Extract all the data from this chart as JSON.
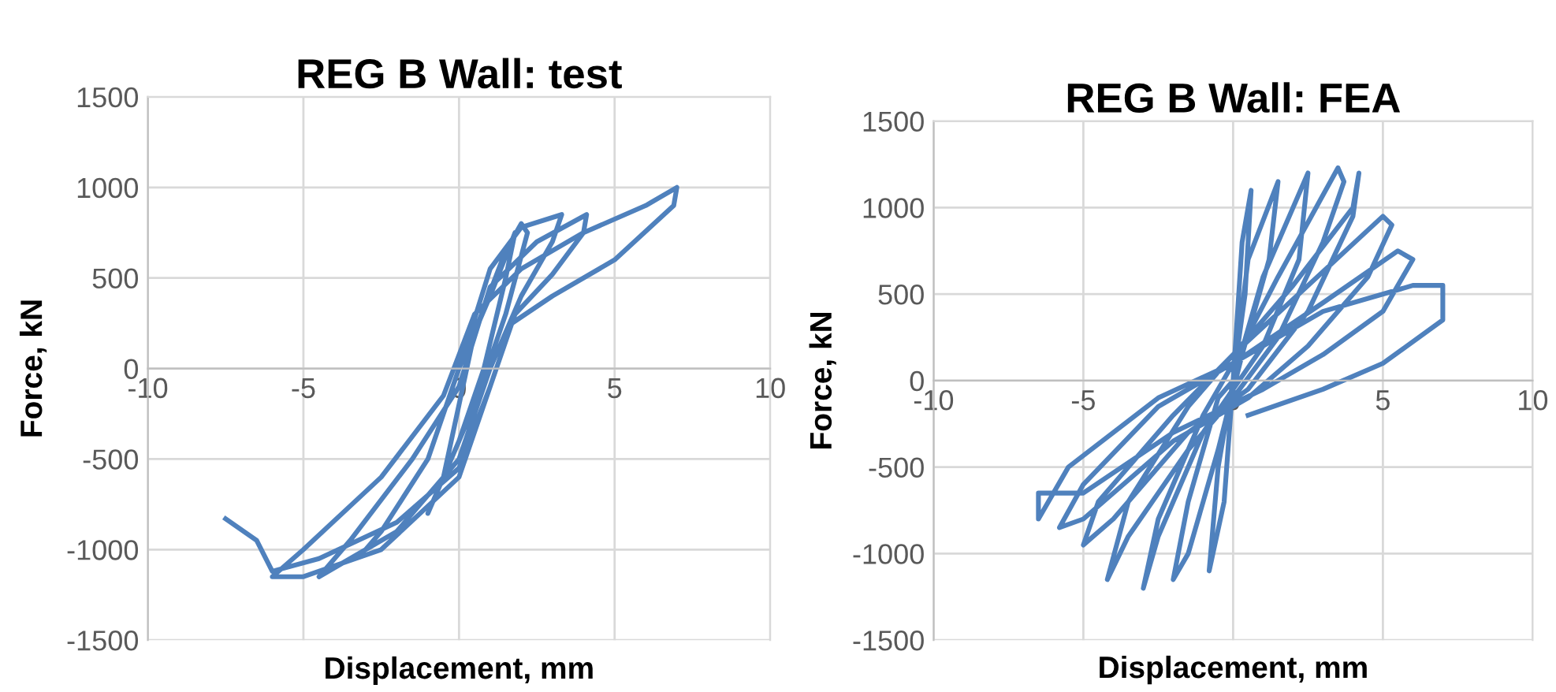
{
  "chart_data": [
    {
      "type": "line",
      "title": "REG B Wall: test",
      "xlabel": "Displacement, mm",
      "ylabel": "Force, kN",
      "xlim": [
        -10,
        10
      ],
      "ylim": [
        -1500,
        1500
      ],
      "xticks": [
        -10,
        -5,
        0,
        5,
        10
      ],
      "yticks": [
        -1500,
        -1000,
        -500,
        0,
        500,
        1000,
        1500
      ],
      "grid": true,
      "marker": "none",
      "line_style": "solid",
      "series": [
        {
          "color": "#4f81bd",
          "x": [
            0,
            1,
            1.8,
            1.5,
            0.8,
            0,
            -1,
            -0.5,
            0,
            0.5,
            1.5,
            2,
            2.2,
            1.5,
            0.5,
            -0.5,
            -2,
            -3,
            -2.5,
            -1,
            0,
            1,
            2,
            3.3,
            3,
            2,
            1,
            0,
            -2,
            -4,
            -4.5,
            -3.5,
            -1.5,
            0,
            1,
            2.5,
            4.1,
            4,
            3,
            1.8,
            1,
            0,
            -2.5,
            -5,
            -6,
            -5,
            -2.5,
            -0.5,
            0.5,
            2,
            4,
            6,
            7,
            6.9,
            5,
            3,
            1.7,
            1,
            0,
            -2,
            -4.5,
            -6,
            -6.5,
            -7.5
          ],
          "values": [
            0,
            400,
            750,
            500,
            0,
            -400,
            -800,
            -600,
            -200,
            200,
            650,
            800,
            750,
            300,
            -200,
            -600,
            -900,
            -1000,
            -900,
            -500,
            0,
            550,
            780,
            850,
            700,
            400,
            0,
            -500,
            -900,
            -1100,
            -1150,
            -950,
            -500,
            -100,
            450,
            700,
            850,
            750,
            520,
            300,
            -100,
            -600,
            -1000,
            -1150,
            -1150,
            -1000,
            -600,
            -150,
            300,
            550,
            750,
            900,
            1000,
            900,
            600,
            400,
            250,
            -100,
            -550,
            -850,
            -1050,
            -1120,
            -950,
            -830
          ]
        }
      ]
    },
    {
      "type": "line",
      "title": "REG B Wall: FEA",
      "xlabel": "Displacement, mm",
      "ylabel": "Force, kN",
      "xlim": [
        -10,
        10
      ],
      "ylim": [
        -1500,
        1500
      ],
      "xticks": [
        -10,
        -5,
        0,
        5,
        10
      ],
      "yticks": [
        -1500,
        -1000,
        -500,
        0,
        500,
        1000,
        1500
      ],
      "grid": true,
      "marker": "none",
      "line_style": "solid",
      "series": [
        {
          "color": "#4f81bd",
          "x": [
            0,
            0.3,
            0.6,
            0.4,
            0,
            -0.3,
            -0.8,
            -0.5,
            0,
            0.5,
            1.5,
            1.2,
            0.3,
            -0.5,
            -1.5,
            -2,
            -1.5,
            -0.5,
            0,
            1,
            2.5,
            2.2,
            1,
            0,
            -1,
            -2.5,
            -3,
            -2.5,
            -1,
            0,
            1.5,
            3.5,
            3.7,
            3,
            1.5,
            0,
            -1.5,
            -3.5,
            -4.2,
            -3.5,
            -1.5,
            0,
            2,
            4,
            4.2,
            4,
            2.5,
            0.5,
            -1.5,
            -4,
            -5,
            -4.5,
            -2,
            0,
            2.5,
            5,
            5.3,
            4.5,
            2.5,
            0.5,
            -2,
            -5,
            -5.8,
            -5,
            -2.5,
            0,
            3,
            5.5,
            6,
            5,
            3,
            1,
            -2,
            -5,
            -6.5,
            -6.5,
            -5.5,
            -2.5,
            0,
            3,
            6,
            7,
            7,
            5,
            3,
            0.5
          ],
          "values": [
            0,
            800,
            1100,
            500,
            0,
            -700,
            -1100,
            -500,
            0,
            700,
            1150,
            700,
            150,
            -400,
            -1000,
            -1150,
            -700,
            -100,
            0,
            600,
            1200,
            700,
            200,
            -50,
            -300,
            -900,
            -1200,
            -800,
            -200,
            100,
            600,
            1230,
            1150,
            800,
            250,
            -100,
            -400,
            -900,
            -1150,
            -700,
            -150,
            150,
            550,
            1000,
            1200,
            950,
            400,
            -50,
            -300,
            -800,
            -950,
            -700,
            -200,
            150,
            550,
            950,
            900,
            600,
            200,
            -100,
            -350,
            -800,
            -850,
            -600,
            -150,
            100,
            450,
            750,
            700,
            400,
            150,
            -50,
            -300,
            -650,
            -650,
            -800,
            -500,
            -100,
            100,
            400,
            550,
            550,
            350,
            100,
            -50,
            -200
          ]
        }
      ]
    }
  ]
}
